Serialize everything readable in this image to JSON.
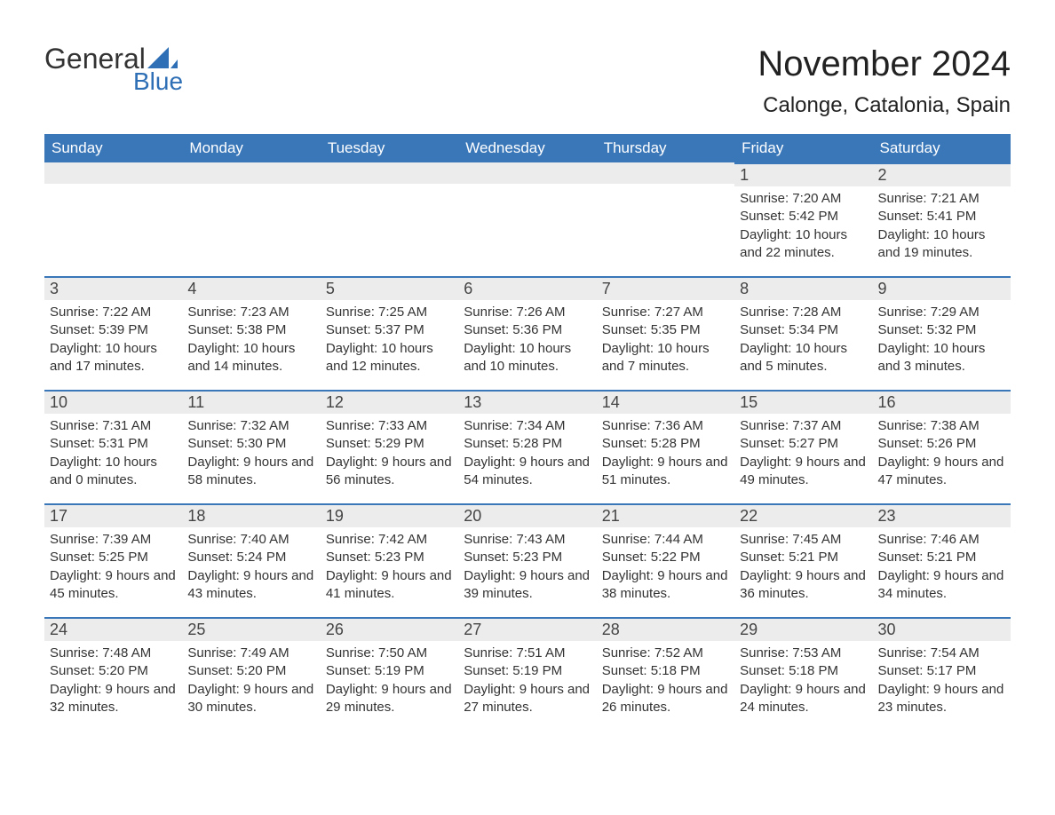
{
  "logo": {
    "text_top": "General",
    "text_bottom": "Blue",
    "top_color": "#333333",
    "bottom_color": "#2f6fb5",
    "sail_color": "#2f6fb5"
  },
  "header": {
    "month_title": "November 2024",
    "location": "Calonge, Catalonia, Spain"
  },
  "colors": {
    "header_bg": "#3a77b9",
    "header_text": "#ffffff",
    "daynum_bg": "#ececec",
    "row_border": "#3a77b9",
    "body_text": "#333333",
    "background": "#ffffff"
  },
  "typography": {
    "month_title_fontsize": 40,
    "location_fontsize": 24,
    "dayheader_fontsize": 17,
    "daynum_fontsize": 18,
    "daytext_fontsize": 15
  },
  "calendar": {
    "type": "table",
    "columns": [
      "Sunday",
      "Monday",
      "Tuesday",
      "Wednesday",
      "Thursday",
      "Friday",
      "Saturday"
    ],
    "weeks": [
      [
        null,
        null,
        null,
        null,
        null,
        {
          "n": "1",
          "sunrise": "Sunrise: 7:20 AM",
          "sunset": "Sunset: 5:42 PM",
          "daylight": "Daylight: 10 hours and 22 minutes."
        },
        {
          "n": "2",
          "sunrise": "Sunrise: 7:21 AM",
          "sunset": "Sunset: 5:41 PM",
          "daylight": "Daylight: 10 hours and 19 minutes."
        }
      ],
      [
        {
          "n": "3",
          "sunrise": "Sunrise: 7:22 AM",
          "sunset": "Sunset: 5:39 PM",
          "daylight": "Daylight: 10 hours and 17 minutes."
        },
        {
          "n": "4",
          "sunrise": "Sunrise: 7:23 AM",
          "sunset": "Sunset: 5:38 PM",
          "daylight": "Daylight: 10 hours and 14 minutes."
        },
        {
          "n": "5",
          "sunrise": "Sunrise: 7:25 AM",
          "sunset": "Sunset: 5:37 PM",
          "daylight": "Daylight: 10 hours and 12 minutes."
        },
        {
          "n": "6",
          "sunrise": "Sunrise: 7:26 AM",
          "sunset": "Sunset: 5:36 PM",
          "daylight": "Daylight: 10 hours and 10 minutes."
        },
        {
          "n": "7",
          "sunrise": "Sunrise: 7:27 AM",
          "sunset": "Sunset: 5:35 PM",
          "daylight": "Daylight: 10 hours and 7 minutes."
        },
        {
          "n": "8",
          "sunrise": "Sunrise: 7:28 AM",
          "sunset": "Sunset: 5:34 PM",
          "daylight": "Daylight: 10 hours and 5 minutes."
        },
        {
          "n": "9",
          "sunrise": "Sunrise: 7:29 AM",
          "sunset": "Sunset: 5:32 PM",
          "daylight": "Daylight: 10 hours and 3 minutes."
        }
      ],
      [
        {
          "n": "10",
          "sunrise": "Sunrise: 7:31 AM",
          "sunset": "Sunset: 5:31 PM",
          "daylight": "Daylight: 10 hours and 0 minutes."
        },
        {
          "n": "11",
          "sunrise": "Sunrise: 7:32 AM",
          "sunset": "Sunset: 5:30 PM",
          "daylight": "Daylight: 9 hours and 58 minutes."
        },
        {
          "n": "12",
          "sunrise": "Sunrise: 7:33 AM",
          "sunset": "Sunset: 5:29 PM",
          "daylight": "Daylight: 9 hours and 56 minutes."
        },
        {
          "n": "13",
          "sunrise": "Sunrise: 7:34 AM",
          "sunset": "Sunset: 5:28 PM",
          "daylight": "Daylight: 9 hours and 54 minutes."
        },
        {
          "n": "14",
          "sunrise": "Sunrise: 7:36 AM",
          "sunset": "Sunset: 5:28 PM",
          "daylight": "Daylight: 9 hours and 51 minutes."
        },
        {
          "n": "15",
          "sunrise": "Sunrise: 7:37 AM",
          "sunset": "Sunset: 5:27 PM",
          "daylight": "Daylight: 9 hours and 49 minutes."
        },
        {
          "n": "16",
          "sunrise": "Sunrise: 7:38 AM",
          "sunset": "Sunset: 5:26 PM",
          "daylight": "Daylight: 9 hours and 47 minutes."
        }
      ],
      [
        {
          "n": "17",
          "sunrise": "Sunrise: 7:39 AM",
          "sunset": "Sunset: 5:25 PM",
          "daylight": "Daylight: 9 hours and 45 minutes."
        },
        {
          "n": "18",
          "sunrise": "Sunrise: 7:40 AM",
          "sunset": "Sunset: 5:24 PM",
          "daylight": "Daylight: 9 hours and 43 minutes."
        },
        {
          "n": "19",
          "sunrise": "Sunrise: 7:42 AM",
          "sunset": "Sunset: 5:23 PM",
          "daylight": "Daylight: 9 hours and 41 minutes."
        },
        {
          "n": "20",
          "sunrise": "Sunrise: 7:43 AM",
          "sunset": "Sunset: 5:23 PM",
          "daylight": "Daylight: 9 hours and 39 minutes."
        },
        {
          "n": "21",
          "sunrise": "Sunrise: 7:44 AM",
          "sunset": "Sunset: 5:22 PM",
          "daylight": "Daylight: 9 hours and 38 minutes."
        },
        {
          "n": "22",
          "sunrise": "Sunrise: 7:45 AM",
          "sunset": "Sunset: 5:21 PM",
          "daylight": "Daylight: 9 hours and 36 minutes."
        },
        {
          "n": "23",
          "sunrise": "Sunrise: 7:46 AM",
          "sunset": "Sunset: 5:21 PM",
          "daylight": "Daylight: 9 hours and 34 minutes."
        }
      ],
      [
        {
          "n": "24",
          "sunrise": "Sunrise: 7:48 AM",
          "sunset": "Sunset: 5:20 PM",
          "daylight": "Daylight: 9 hours and 32 minutes."
        },
        {
          "n": "25",
          "sunrise": "Sunrise: 7:49 AM",
          "sunset": "Sunset: 5:20 PM",
          "daylight": "Daylight: 9 hours and 30 minutes."
        },
        {
          "n": "26",
          "sunrise": "Sunrise: 7:50 AM",
          "sunset": "Sunset: 5:19 PM",
          "daylight": "Daylight: 9 hours and 29 minutes."
        },
        {
          "n": "27",
          "sunrise": "Sunrise: 7:51 AM",
          "sunset": "Sunset: 5:19 PM",
          "daylight": "Daylight: 9 hours and 27 minutes."
        },
        {
          "n": "28",
          "sunrise": "Sunrise: 7:52 AM",
          "sunset": "Sunset: 5:18 PM",
          "daylight": "Daylight: 9 hours and 26 minutes."
        },
        {
          "n": "29",
          "sunrise": "Sunrise: 7:53 AM",
          "sunset": "Sunset: 5:18 PM",
          "daylight": "Daylight: 9 hours and 24 minutes."
        },
        {
          "n": "30",
          "sunrise": "Sunrise: 7:54 AM",
          "sunset": "Sunset: 5:17 PM",
          "daylight": "Daylight: 9 hours and 23 minutes."
        }
      ]
    ]
  }
}
